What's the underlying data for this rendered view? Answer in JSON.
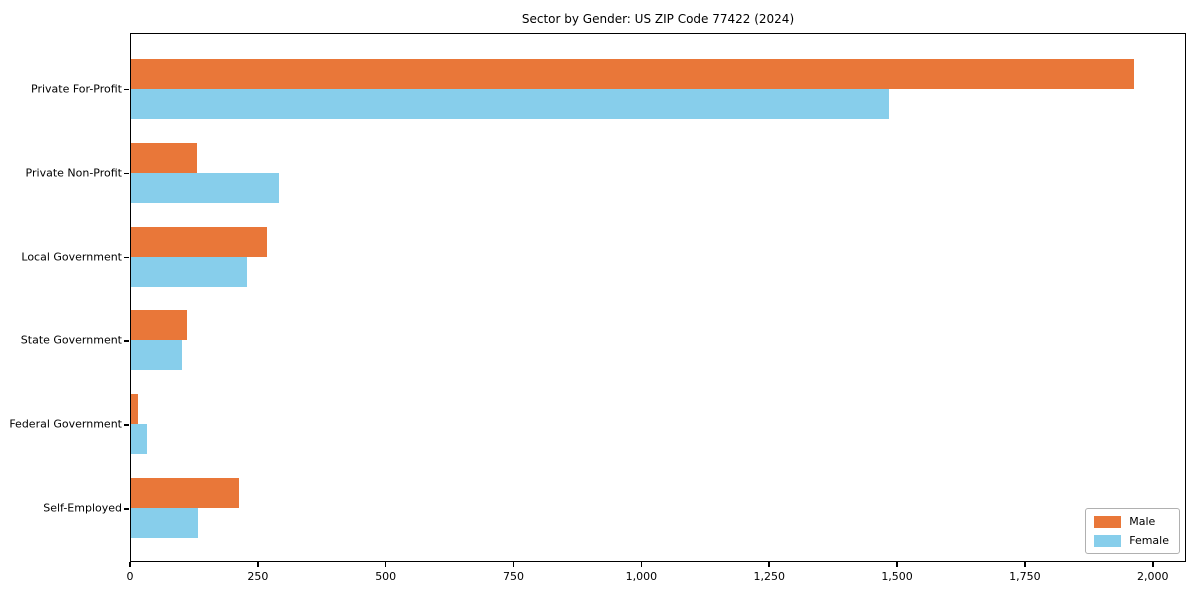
{
  "chart_data": {
    "type": "bar",
    "orientation": "horizontal",
    "title": "Sector by Gender: US ZIP Code 77422 (2024)",
    "categories": [
      "Private For-Profit",
      "Private Non-Profit",
      "Local Government",
      "State Government",
      "Federal Government",
      "Self-Employed"
    ],
    "series": [
      {
        "name": "Male",
        "color": "#e97739",
        "values": [
          1965,
          130,
          267,
          110,
          13,
          212
        ]
      },
      {
        "name": "Female",
        "color": "#87ceeb",
        "values": [
          1485,
          290,
          227,
          100,
          31,
          132
        ]
      }
    ],
    "xlabel": "",
    "ylabel": "",
    "xlim": [
      0,
      2065
    ],
    "xticks": [
      0,
      250,
      500,
      750,
      1000,
      1250,
      1500,
      1750,
      2000
    ],
    "xtick_labels": [
      "0",
      "250",
      "500",
      "750",
      "1,000",
      "1,250",
      "1,500",
      "1,750",
      "2,000"
    ],
    "grid": false,
    "legend": {
      "position": "lower right"
    }
  }
}
